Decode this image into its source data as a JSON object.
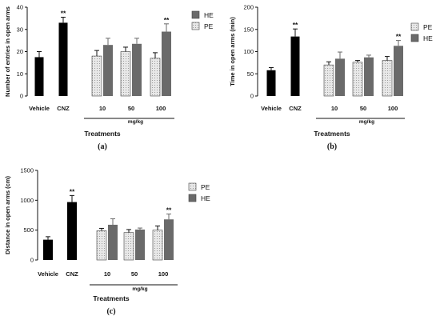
{
  "colors": {
    "vehicle": "#000000",
    "cnz": "#000000",
    "he": "#6a6a6a",
    "pe_fill": "#e8e8e8",
    "pe_pattern": "#8a8a8a",
    "axis": "#111111"
  },
  "chart_data": [
    {
      "type": "bar",
      "panel_label": "(a)",
      "ylabel": "Number of entries in open arms",
      "xlabel": "Treatments",
      "unit_label": "mg/kg",
      "yticks": [
        0,
        10,
        20,
        30,
        40
      ],
      "ylim": [
        0,
        40
      ],
      "legend": [
        {
          "name": "HE",
          "style": "he"
        },
        {
          "name": "PE",
          "style": "pe"
        }
      ],
      "groups": [
        {
          "label": "Vehicle",
          "bars": [
            {
              "style": "vehicle",
              "value": 17.5,
              "error": 2.5,
              "sig": ""
            }
          ]
        },
        {
          "label": "CNZ",
          "bars": [
            {
              "style": "cnz",
              "value": 33,
              "error": 2.5,
              "sig": "**"
            }
          ]
        },
        {
          "label": "10",
          "bars": [
            {
              "style": "pe",
              "value": 18,
              "error": 2.5,
              "sig": ""
            },
            {
              "style": "he",
              "value": 23,
              "error": 3,
              "sig": ""
            }
          ]
        },
        {
          "label": "50",
          "bars": [
            {
              "style": "pe",
              "value": 20,
              "error": 2,
              "sig": ""
            },
            {
              "style": "he",
              "value": 23.5,
              "error": 2.5,
              "sig": ""
            }
          ]
        },
        {
          "label": "100",
          "bars": [
            {
              "style": "pe",
              "value": 17,
              "error": 2.5,
              "sig": ""
            },
            {
              "style": "he",
              "value": 29,
              "error": 3.5,
              "sig": "**"
            }
          ]
        }
      ]
    },
    {
      "type": "bar",
      "panel_label": "(b)",
      "ylabel": "Time in open arms (min)",
      "xlabel": "Treatments",
      "unit_label": "mg/kg",
      "yticks": [
        0,
        50,
        100,
        150,
        200
      ],
      "ylim": [
        0,
        200
      ],
      "legend": [
        {
          "name": "PE",
          "style": "pe"
        },
        {
          "name": "HE",
          "style": "he"
        }
      ],
      "groups": [
        {
          "label": "Vehicle",
          "bars": [
            {
              "style": "vehicle",
              "value": 58,
              "error": 6,
              "sig": ""
            }
          ]
        },
        {
          "label": "CNZ",
          "bars": [
            {
              "style": "cnz",
              "value": 134,
              "error": 17,
              "sig": "**"
            }
          ]
        },
        {
          "label": "10",
          "bars": [
            {
              "style": "pe",
              "value": 70,
              "error": 7,
              "sig": ""
            },
            {
              "style": "he",
              "value": 84,
              "error": 15,
              "sig": ""
            }
          ]
        },
        {
          "label": "50",
          "bars": [
            {
              "style": "pe",
              "value": 76,
              "error": 4,
              "sig": ""
            },
            {
              "style": "he",
              "value": 87,
              "error": 5,
              "sig": ""
            }
          ]
        },
        {
          "label": "100",
          "bars": [
            {
              "style": "pe",
              "value": 80,
              "error": 9,
              "sig": ""
            },
            {
              "style": "he",
              "value": 113,
              "error": 12,
              "sig": "**"
            }
          ]
        }
      ]
    },
    {
      "type": "bar",
      "panel_label": "(c)",
      "ylabel": "Distance in open arms (cm)",
      "xlabel": "Treatments",
      "unit_label": "mg/kg",
      "yticks": [
        0,
        500,
        1000,
        1500
      ],
      "ylim": [
        0,
        1500
      ],
      "legend": [
        {
          "name": "PE",
          "style": "pe"
        },
        {
          "name": "HE",
          "style": "he"
        }
      ],
      "groups": [
        {
          "label": "Vehicle",
          "bars": [
            {
              "style": "vehicle",
              "value": 340,
              "error": 50,
              "sig": ""
            }
          ]
        },
        {
          "label": "CNZ",
          "bars": [
            {
              "style": "cnz",
              "value": 970,
              "error": 110,
              "sig": "**"
            }
          ]
        },
        {
          "label": "10",
          "bars": [
            {
              "style": "pe",
              "value": 490,
              "error": 40,
              "sig": ""
            },
            {
              "style": "he",
              "value": 590,
              "error": 100,
              "sig": ""
            }
          ]
        },
        {
          "label": "50",
          "bars": [
            {
              "style": "pe",
              "value": 460,
              "error": 50,
              "sig": ""
            },
            {
              "style": "he",
              "value": 510,
              "error": 25,
              "sig": ""
            }
          ]
        },
        {
          "label": "100",
          "bars": [
            {
              "style": "pe",
              "value": 500,
              "error": 70,
              "sig": ""
            },
            {
              "style": "he",
              "value": 680,
              "error": 90,
              "sig": "**"
            }
          ]
        }
      ]
    }
  ]
}
